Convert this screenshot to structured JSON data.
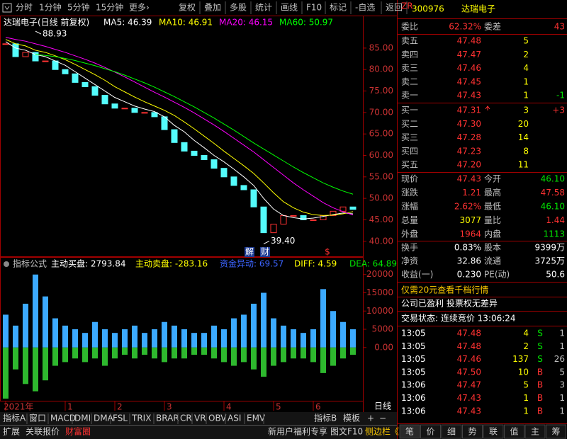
{
  "toolbar": {
    "left": [
      "分时",
      "1分钟",
      "5分钟",
      "15分钟",
      "更多›"
    ],
    "right": [
      "复权",
      "叠加",
      "多股",
      "统计",
      "画线",
      "F10",
      "标记",
      "-自选",
      "返回"
    ]
  },
  "chart_data": [
    {
      "type": "candlestick",
      "title": "达瑞电子(日线 前复权)",
      "categories": [
        "2021年",
        null,
        null,
        null,
        null,
        null,
        "1",
        null,
        null,
        null,
        null,
        "2",
        null,
        null,
        null,
        null,
        "3",
        null,
        null,
        null,
        null,
        null,
        "4",
        null,
        null,
        null,
        null,
        "5",
        null,
        null,
        null,
        "6",
        null,
        null,
        null,
        null
      ],
      "close": {
        "color_up": "#ff3232",
        "color_down": "#54fcfc",
        "values": [
          86,
          83,
          84,
          82,
          82,
          80,
          79,
          77,
          76,
          74,
          72,
          71,
          71,
          70,
          70,
          69,
          66,
          63,
          61,
          60,
          59,
          57,
          55,
          53,
          52,
          48,
          42,
          44,
          46,
          46,
          45,
          45,
          46,
          47,
          48,
          47.43
        ]
      },
      "series": [
        {
          "name": "MA5: 46.39",
          "color": "#ffffff",
          "values": [
            86.5,
            85,
            84.5,
            83.5,
            83,
            82,
            81,
            79.5,
            78,
            76.5,
            75,
            73.5,
            72.5,
            71.5,
            70.8,
            70.2,
            69,
            67,
            65.5,
            63.5,
            61.8,
            60,
            58.5,
            56.8,
            55,
            53,
            50,
            47.5,
            46,
            45.5,
            45.2,
            45.4,
            45.8,
            46.2,
            46.6,
            46.39
          ]
        },
        {
          "name": "MA10: 46.91",
          "color": "#ffff00",
          "values": [
            87,
            86,
            85.5,
            84.5,
            84,
            83.2,
            82.3,
            81.2,
            80,
            78.8,
            77.5,
            76,
            74.8,
            73.6,
            72.5,
            71.5,
            70.5,
            69.3,
            67.8,
            66.2,
            64.5,
            62.8,
            61,
            59.3,
            57.6,
            55.8,
            53.6,
            51.3,
            49.2,
            47.8,
            46.8,
            46.2,
            46,
            46.1,
            46.4,
            46.91
          ]
        },
        {
          "name": "MA20: 46.15",
          "color": "#ff00ff",
          "values": [
            87.5,
            87,
            86.6,
            86,
            85.4,
            84.7,
            84,
            83.2,
            82.4,
            81.5,
            80.5,
            79.4,
            78.3,
            77.1,
            75.9,
            74.7,
            73.6,
            72.4,
            71.2,
            69.9,
            68.5,
            67.1,
            65.6,
            64,
            62.4,
            60.8,
            59,
            57.2,
            55.4,
            53.6,
            52,
            50.5,
            49,
            47.8,
            46.9,
            46.15
          ]
        },
        {
          "name": "MA60: 50.97",
          "color": "#00ff00",
          "values": [
            null,
            null,
            null,
            83.5,
            83.3,
            83,
            82.6,
            82.1,
            81.5,
            80.9,
            80.2,
            79.5,
            78.7,
            77.8,
            76.9,
            75.9,
            74.8,
            73.7,
            72.5,
            71.3,
            70,
            68.7,
            67.3,
            65.9,
            64.4,
            62.9,
            61.5,
            60.1,
            58.7,
            57.3,
            56,
            54.8,
            53.6,
            52.6,
            51.7,
            50.97
          ]
        }
      ],
      "annotations": [
        {
          "value": 88.93,
          "label": "88.93"
        },
        {
          "value": 39.4,
          "label": "39.40"
        }
      ],
      "events": [
        "解",
        "财",
        "$"
      ],
      "ylim": [
        36.5,
        89.6
      ],
      "yticks": [
        {
          "value": 40,
          "label": "40.00"
        },
        {
          "value": 45,
          "label": "45.00"
        },
        {
          "value": 50,
          "label": "50.00"
        },
        {
          "value": 55,
          "label": "55.00"
        },
        {
          "value": 60,
          "label": "60.00"
        },
        {
          "value": 65,
          "label": "65.00"
        },
        {
          "value": 70,
          "label": "70.00"
        },
        {
          "value": 75,
          "label": "75.00"
        },
        {
          "value": 80,
          "label": "80.00"
        },
        {
          "value": 85,
          "label": "85.00"
        }
      ]
    },
    {
      "type": "bar",
      "title": "指标公式",
      "legend": [
        {
          "text": "主动买盘: 2793.84",
          "color": "#ffffff"
        },
        {
          "text": "主动卖盘: -283.16",
          "color": "#ffff00"
        },
        {
          "text": "资金异动: 69.57",
          "color": "#3c64ff"
        },
        {
          "text": "DIFF: 4.59",
          "color": "#ffff00"
        },
        {
          "text": "DEA: 64.89",
          "color": "#00e600"
        }
      ],
      "series": [
        {
          "color": "#3caaff",
          "values": [
            9000,
            6000,
            12000,
            20000,
            14000,
            8000,
            6000,
            5000,
            4000,
            7000,
            5000,
            4000,
            5000,
            6000,
            4000,
            5000,
            7000,
            6000,
            5000,
            4000,
            4000,
            6000,
            5000,
            8000,
            9000,
            12000,
            15000,
            8000,
            6000,
            5000,
            4000,
            5000,
            16000,
            10000,
            7000,
            5000
          ]
        },
        {
          "color": "#2eb82e",
          "values": [
            -14000,
            -6000,
            -10000,
            -12000,
            -9000,
            -5000,
            -4000,
            -3000,
            -4000,
            -3000,
            -5000,
            -3000,
            -2000,
            -3000,
            -2000,
            -3000,
            -4000,
            -3000,
            -3000,
            -2000,
            -2000,
            -3000,
            -4000,
            -5000,
            -4000,
            -6000,
            -8000,
            -5000,
            -4000,
            -3000,
            -3000,
            -4000,
            -7000,
            -5000,
            -3000,
            -2000
          ]
        }
      ],
      "ylim": [
        -14400,
        21500
      ],
      "yticks": [
        {
          "value": 0,
          "label": "0.00"
        },
        5000,
        10000,
        15000,
        20000
      ]
    }
  ],
  "quote": {
    "tag": "ZR",
    "code": "300976",
    "name": "达瑞电子",
    "weibi": [
      "委比",
      "62.32%",
      "委差",
      "43"
    ],
    "asks": [
      [
        "卖五",
        "47.48",
        "5"
      ],
      [
        "卖四",
        "47.47",
        "2"
      ],
      [
        "卖三",
        "47.46",
        "4"
      ],
      [
        "卖二",
        "47.45",
        "1"
      ],
      [
        "卖一",
        "47.43",
        "1",
        "-1"
      ]
    ],
    "bids": [
      [
        "买一",
        "47.31",
        "3",
        "+3"
      ],
      [
        "买二",
        "47.30",
        "20"
      ],
      [
        "买三",
        "47.28",
        "14"
      ],
      [
        "买四",
        "47.23",
        "8"
      ],
      [
        "买五",
        "47.20",
        "11"
      ]
    ],
    "stats": [
      [
        "现价",
        "47.43",
        "今开",
        "46.10"
      ],
      [
        "涨跌",
        "1.21",
        "最高",
        "47.58"
      ],
      [
        "涨幅",
        "2.62%",
        "最低",
        "46.10"
      ],
      [
        "总量",
        "3077",
        "量比",
        "1.44"
      ],
      [
        "外盘",
        "1964",
        "内盘",
        "1113"
      ]
    ],
    "stats2": [
      [
        "换手",
        "0.83%",
        "股本",
        "9399万"
      ],
      [
        "净资",
        "32.86",
        "流通",
        "3725万"
      ],
      [
        "收益(一)",
        "0.230",
        "PE(动)",
        "50.6"
      ]
    ],
    "notices": [
      "仅需20元查看千档行情",
      "公司已盈利 投票权无差异"
    ],
    "status": "交易状态: 连续竞价 13:06:24",
    "trades": [
      [
        "13:05",
        "47.48",
        "4",
        "S",
        "1"
      ],
      [
        "13:05",
        "47.48",
        "2",
        "S",
        "1"
      ],
      [
        "13:05",
        "47.46",
        "137",
        "S",
        "26"
      ],
      [
        "13:05",
        "47.50",
        "10",
        "B",
        "5"
      ],
      [
        "13:06",
        "47.47",
        "5",
        "B",
        "3"
      ],
      [
        "13:06",
        "47.43",
        "1",
        "B",
        "1"
      ],
      [
        "13:06",
        "47.43",
        "1",
        "B",
        "1"
      ]
    ],
    "tabs": [
      "笔",
      "价",
      "细",
      "势",
      "联",
      "值",
      "主",
      "筹"
    ]
  },
  "bottom": {
    "tabs": [
      "指标A",
      "窗口",
      "MACD",
      "DMI",
      "DMA",
      "FSL",
      "TRIX",
      "BRAR",
      "CR",
      "VR",
      "OBV",
      "ASI",
      "EMV"
    ],
    "tabs_right": [
      "指标B",
      "模板",
      "+",
      "−"
    ],
    "period": "日线",
    "row2_left": [
      "扩展",
      "关联报价",
      "财富圈"
    ],
    "row2_right": [
      "新用户福利专享",
      "图文F10",
      "侧边栏《"
    ]
  }
}
